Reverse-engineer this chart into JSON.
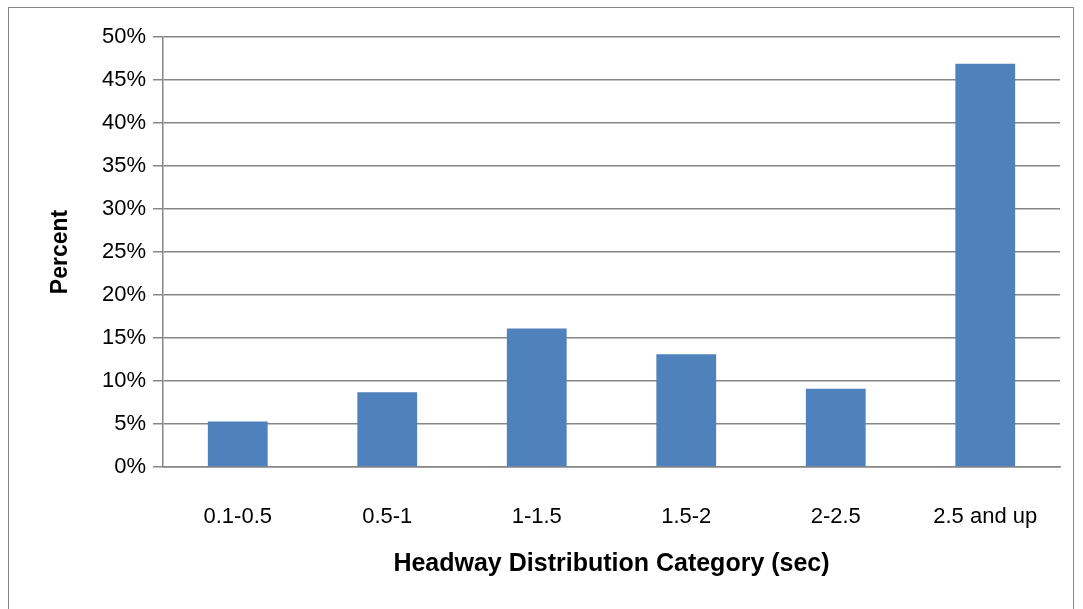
{
  "chart_data": {
    "type": "bar",
    "xlabel": "Headway Distribution Category (sec)",
    "ylabel": "Percent",
    "categories": [
      "0.1-0.5",
      "0.5-1",
      "1-1.5",
      "1.5-2",
      "2-2.5",
      "2.5 and up"
    ],
    "values": [
      5.3,
      8.7,
      16.1,
      13.1,
      9.1,
      46.9
    ],
    "color": "#4f81bd",
    "ylim": [
      0,
      50
    ],
    "yticks": [
      {
        "value": 0,
        "label": "0%"
      },
      {
        "value": 5,
        "label": "5%"
      },
      {
        "value": 10,
        "label": "10%"
      },
      {
        "value": 15,
        "label": "15%"
      },
      {
        "value": 20,
        "label": "20%"
      },
      {
        "value": 25,
        "label": "25%"
      },
      {
        "value": 30,
        "label": "30%"
      },
      {
        "value": 35,
        "label": "35%"
      },
      {
        "value": 40,
        "label": "40%"
      },
      {
        "value": 45,
        "label": "45%"
      },
      {
        "value": 50,
        "label": "50%"
      }
    ],
    "grid": "y"
  }
}
